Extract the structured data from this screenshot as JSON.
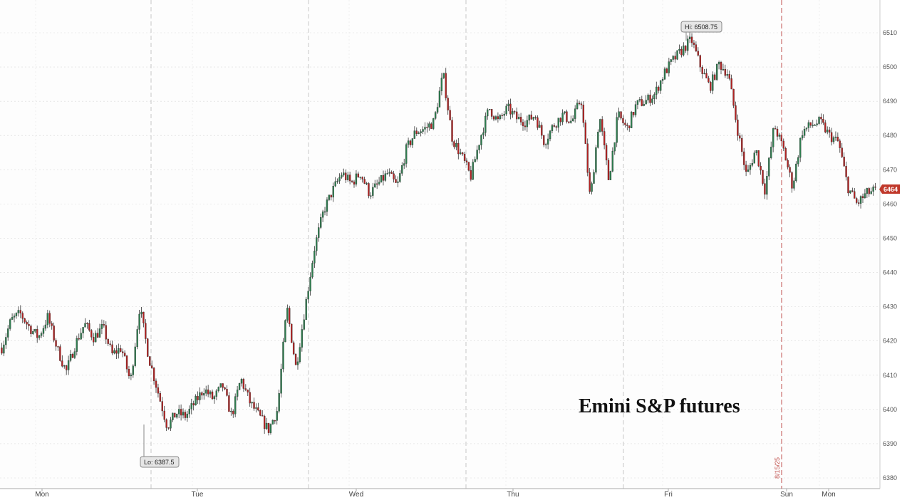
{
  "chart_data": {
    "type": "candlestick",
    "title": "Emini S&P futures",
    "ylim": [
      6378,
      6518
    ],
    "yticks": [
      6380,
      6390,
      6400,
      6410,
      6420,
      6430,
      6440,
      6450,
      6460,
      6470,
      6480,
      6490,
      6500,
      6510
    ],
    "x_labels": [
      "Mon",
      "Tue",
      "Wed",
      "Thu",
      "Fri",
      "Sun",
      "Mon"
    ],
    "session_date_label": "8/15/25",
    "high_label": "Hi: 6508.75",
    "low_label": "Lo: 6387.5",
    "last_value_label": "6464",
    "colors": {
      "up": "#2e7d4f",
      "down": "#b22222",
      "last_badge": "#c0392b",
      "grid": "#d9d9d9",
      "session_line": "#c0504d"
    },
    "grid": true,
    "close_path": [
      6418,
      6426,
      6428,
      6424,
      6421,
      6427,
      6418,
      6411,
      6419,
      6425,
      6421,
      6424,
      6416,
      6418,
      6408,
      6430,
      6415,
      6405,
      6395,
      6399,
      6398,
      6402,
      6406,
      6403,
      6407,
      6398,
      6409,
      6402,
      6398,
      6394,
      6400,
      6430,
      6412,
      6430,
      6447,
      6458,
      6464,
      6469,
      6466,
      6469,
      6463,
      6466,
      6469,
      6465,
      6476,
      6481,
      6482,
      6484,
      6498,
      6479,
      6474,
      6468,
      6479,
      6488,
      6484,
      6488,
      6485,
      6484,
      6486,
      6478,
      6483,
      6486,
      6484,
      6491,
      6461,
      6486,
      6467,
      6486,
      6482,
      6489,
      6490,
      6492,
      6498,
      6502,
      6505,
      6508,
      6500,
      6494,
      6501,
      6498,
      6482,
      6468,
      6476,
      6464,
      6483,
      6476,
      6465,
      6481,
      6483,
      6484,
      6480,
      6478,
      6465,
      6460,
      6463,
      6464
    ]
  }
}
